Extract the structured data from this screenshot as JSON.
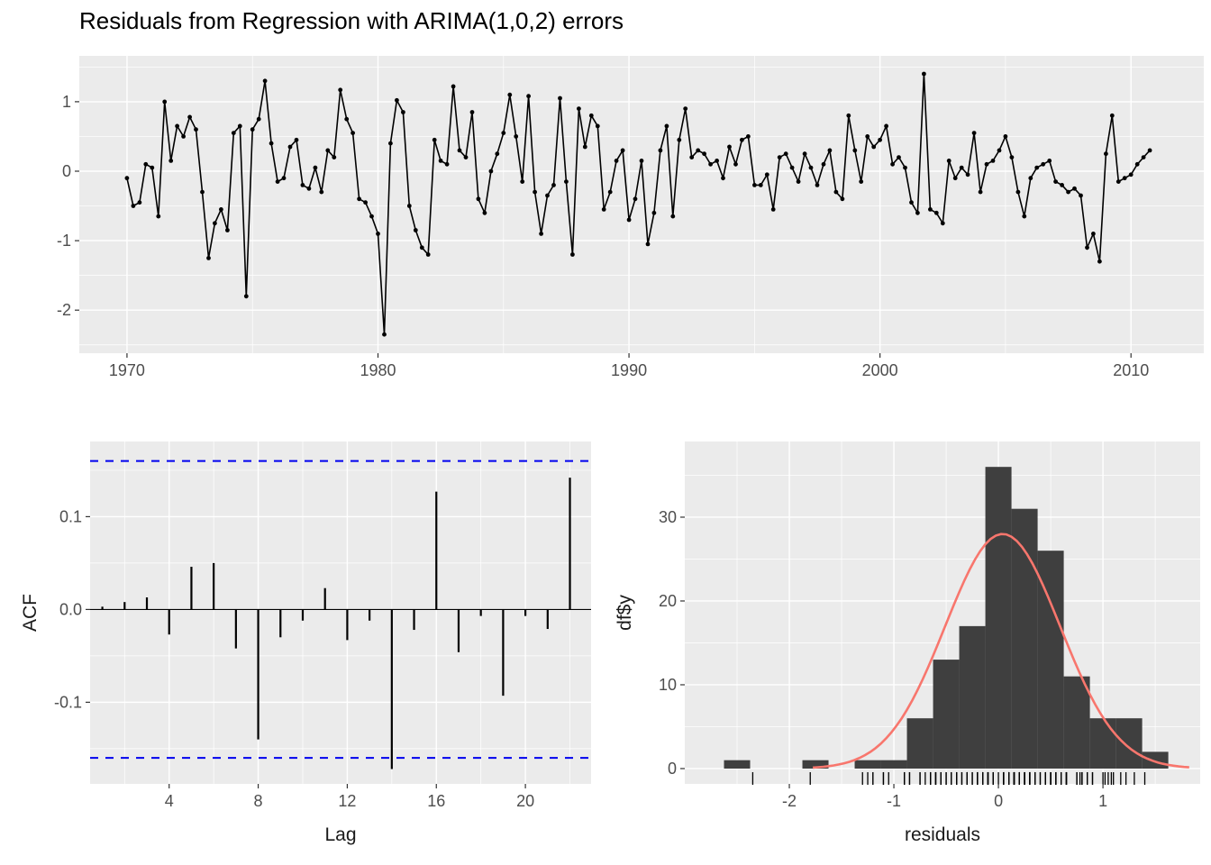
{
  "title": "Residuals from Regression with ARIMA(1,0,2) errors",
  "colors": {
    "background": "#FFFFFF",
    "panel_bg": "#EBEBEB",
    "grid_major": "#FFFFFF",
    "grid_minor": "#FFFFFF",
    "series_line": "#000000",
    "point": "#000000",
    "acf_bar": "#000000",
    "zero_line": "#000000",
    "conf_band": "#0000EE",
    "hist_fill": "#3F3F3F",
    "density_curve": "#F8766D",
    "rug": "#000000",
    "tick_mark": "#333333",
    "tick_text": "#4D4D4D",
    "axis_title": "#1A1A1A",
    "title_text": "#000000"
  },
  "chart_data": [
    {
      "type": "line",
      "name": "residuals-time-series",
      "title": "Residuals from Regression with ARIMA(1,0,2) errors",
      "x_start": 1970.0,
      "x_step": 0.25,
      "values": [
        -0.1,
        -0.5,
        -0.45,
        0.1,
        0.05,
        -0.65,
        1.0,
        0.15,
        0.65,
        0.5,
        0.78,
        0.6,
        -0.3,
        -1.25,
        -0.75,
        -0.55,
        -0.85,
        0.55,
        0.65,
        -1.8,
        0.6,
        0.75,
        1.3,
        0.4,
        -0.15,
        -0.1,
        0.35,
        0.45,
        -0.2,
        -0.25,
        0.05,
        -0.3,
        0.3,
        0.2,
        1.17,
        0.75,
        0.55,
        -0.4,
        -0.45,
        -0.65,
        -0.9,
        -2.35,
        0.4,
        1.02,
        0.85,
        -0.5,
        -0.85,
        -1.1,
        -1.2,
        0.45,
        0.15,
        0.1,
        1.22,
        0.3,
        0.2,
        0.85,
        -0.4,
        -0.6,
        0.0,
        0.25,
        0.55,
        1.1,
        0.5,
        -0.15,
        1.08,
        -0.3,
        -0.9,
        -0.35,
        -0.2,
        1.05,
        -0.15,
        -1.2,
        0.9,
        0.35,
        0.8,
        0.65,
        -0.55,
        -0.3,
        0.15,
        0.3,
        -0.7,
        -0.4,
        0.15,
        -1.05,
        -0.6,
        0.3,
        0.65,
        -0.65,
        0.45,
        0.9,
        0.2,
        0.3,
        0.25,
        0.1,
        0.15,
        -0.1,
        0.35,
        0.1,
        0.45,
        0.5,
        -0.2,
        -0.2,
        -0.05,
        -0.55,
        0.2,
        0.25,
        0.05,
        -0.15,
        0.25,
        0.05,
        -0.2,
        0.1,
        0.3,
        -0.3,
        -0.4,
        0.8,
        0.3,
        -0.15,
        0.5,
        0.35,
        0.45,
        0.65,
        0.1,
        0.2,
        0.05,
        -0.45,
        -0.6,
        1.4,
        -0.55,
        -0.6,
        -0.75,
        0.15,
        -0.1,
        0.05,
        -0.05,
        0.55,
        -0.3,
        0.1,
        0.15,
        0.3,
        0.5,
        0.2,
        -0.3,
        -0.65,
        -0.1,
        0.05,
        0.1,
        0.15,
        -0.15,
        -0.2,
        -0.3,
        -0.25,
        -0.35,
        -1.1,
        -0.9,
        -1.3,
        0.25,
        0.8,
        -0.15,
        -0.1,
        -0.05,
        0.1,
        0.2,
        0.3
      ],
      "xlabel": "",
      "ylabel": "",
      "xticks": [
        1970,
        1980,
        1990,
        2000,
        2010
      ],
      "xticks_minor": [
        1975,
        1985,
        1995,
        2005
      ],
      "yticks": [
        -2,
        -1,
        0,
        1
      ],
      "yticks_minor": [
        -2.5,
        -1.5,
        -0.5,
        0.5,
        1.5
      ],
      "xlim": [
        1968.1,
        2012.9
      ],
      "ylim": [
        -2.62,
        1.66
      ]
    },
    {
      "type": "acf",
      "name": "acf-of-residuals",
      "xlabel": "Lag",
      "ylabel": "ACF",
      "lags": [
        1,
        2,
        3,
        4,
        5,
        6,
        7,
        8,
        9,
        10,
        11,
        12,
        13,
        14,
        15,
        16,
        17,
        18,
        19,
        20,
        21,
        22
      ],
      "values": [
        0.003,
        0.008,
        0.013,
        -0.027,
        0.046,
        0.05,
        -0.042,
        -0.14,
        -0.03,
        -0.012,
        0.023,
        -0.033,
        -0.012,
        -0.172,
        -0.022,
        0.127,
        -0.046,
        -0.007,
        -0.093,
        -0.007,
        -0.021,
        0.142
      ],
      "conf_level": 0.16,
      "xticks": [
        4,
        8,
        12,
        16,
        20
      ],
      "xticks_minor": [
        2,
        6,
        10,
        14,
        18,
        22
      ],
      "yticks": [
        -0.1,
        0.0,
        0.1
      ],
      "ytick_format": "fixed1",
      "yticks_minor": [
        -0.15,
        -0.05,
        0.05,
        0.15
      ],
      "xlim": [
        0.45,
        22.95
      ],
      "ylim": [
        -0.188,
        0.181
      ]
    },
    {
      "type": "histogram",
      "name": "histogram-of-residuals",
      "xlabel": "residuals",
      "ylabel": "df$y",
      "bin_width": 0.25,
      "bin_centers": [
        -2.5,
        -2.25,
        -2.0,
        -1.75,
        -1.5,
        -1.25,
        -1.0,
        -0.75,
        -0.5,
        -0.25,
        0.0,
        0.25,
        0.5,
        0.75,
        1.0,
        1.25,
        1.5
      ],
      "counts": [
        1,
        0,
        0,
        1,
        0,
        1,
        1,
        6,
        13,
        17,
        36,
        31,
        26,
        11,
        6,
        6,
        2
      ],
      "normal_curve": {
        "mean": 0.04,
        "sd": 0.55,
        "peak": 28
      },
      "rug_source": "residuals-time-series",
      "xticks": [
        -2,
        -1,
        0,
        1
      ],
      "xticks_minor": [
        -2.5,
        -1.5,
        -0.5,
        0.5,
        1.5
      ],
      "yticks": [
        0,
        10,
        20,
        30
      ],
      "yticks_minor": [
        5,
        15,
        25,
        35
      ],
      "xlim": [
        -3.0,
        1.93
      ],
      "ylim": [
        -1.83,
        39.03
      ]
    }
  ]
}
